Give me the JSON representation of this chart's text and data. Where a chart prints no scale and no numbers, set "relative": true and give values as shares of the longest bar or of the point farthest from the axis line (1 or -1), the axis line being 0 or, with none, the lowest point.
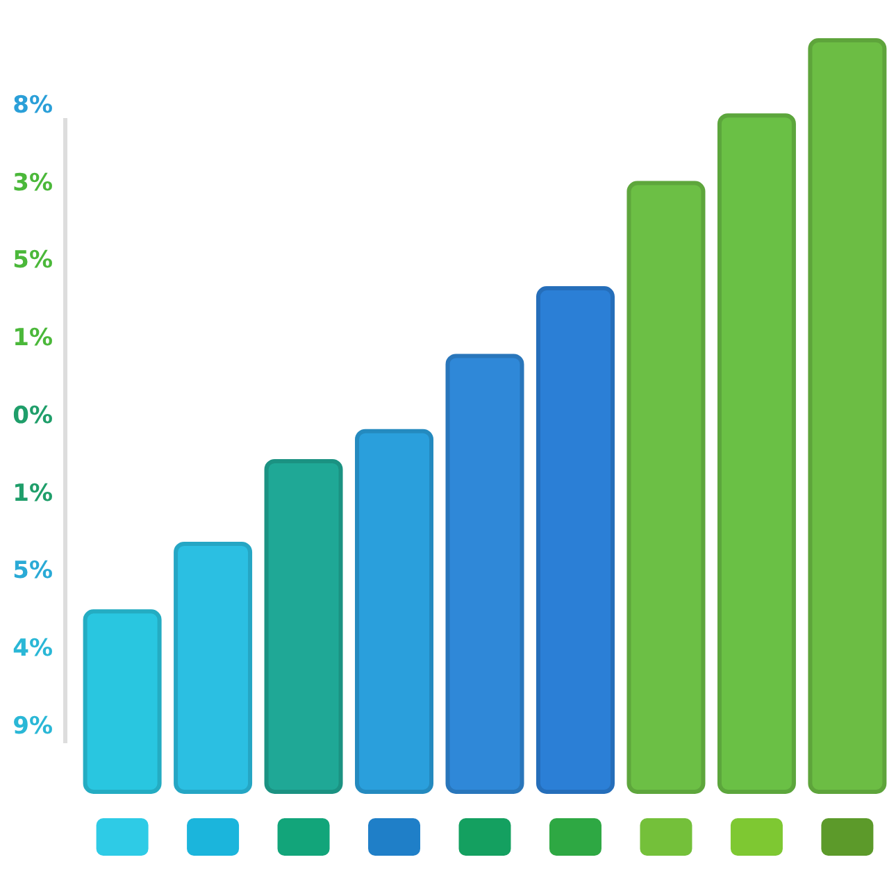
{
  "chart_data": {
    "type": "bar",
    "relative": true,
    "categories": [
      null,
      null,
      null,
      null,
      null,
      null,
      null,
      null,
      null
    ],
    "values": [
      0.24,
      0.33,
      0.44,
      0.48,
      0.58,
      0.67,
      0.81,
      0.9,
      1
    ],
    "colors": [
      "#29c6e0",
      "#2bbfe2",
      "#1fa896",
      "#2a9fdc",
      "#2f88d8",
      "#2b7fd6",
      "#6cbf45",
      "#6ac045",
      "#6cbd44"
    ],
    "annotations": [
      "8%",
      "3%",
      "5%",
      "1%",
      "0%",
      "1%",
      "5%",
      "4%",
      "9%"
    ]
  }
}
